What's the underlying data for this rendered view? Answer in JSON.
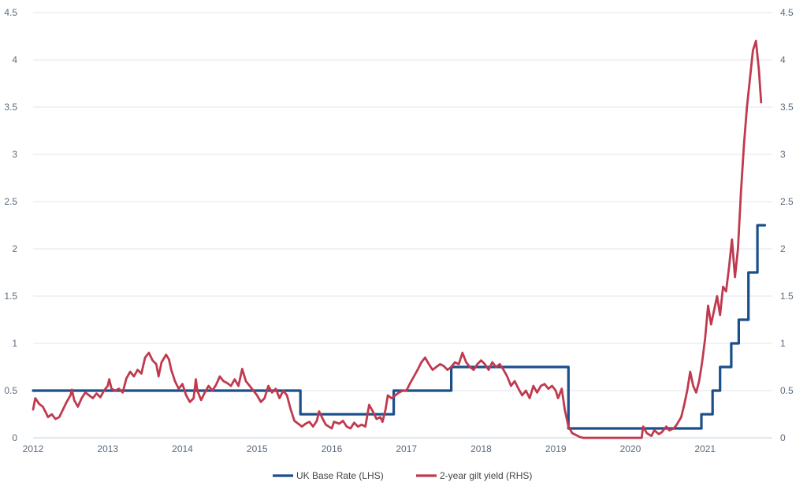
{
  "chart_data": {
    "type": "line",
    "title": "",
    "xlabel": "",
    "ylabel_left": "",
    "ylabel_right": "",
    "xlim": [
      2012,
      2021.9
    ],
    "ylim_left": [
      0,
      4.5
    ],
    "ylim_right": [
      0,
      4.5
    ],
    "y_ticks": [
      "0",
      "0.5",
      "1",
      "1.5",
      "2",
      "2.5",
      "3",
      "3.5",
      "4",
      "4.5"
    ],
    "y_tick_values": [
      0,
      0.5,
      1,
      1.5,
      2,
      2.5,
      3,
      3.5,
      4,
      4.5
    ],
    "x_ticks": [
      "2012",
      "2013",
      "2014",
      "2015",
      "2016",
      "2017",
      "2018",
      "2019",
      "2020",
      "2021"
    ],
    "x_tick_values": [
      2012,
      2013,
      2014,
      2015,
      2016,
      2017,
      2018,
      2019,
      2020,
      2021
    ],
    "grid": "horizontal",
    "legend_position": "bottom-center",
    "series": [
      {
        "name": "UK Base Rate (LHS)",
        "axis": "left",
        "color": "#1b4f8a",
        "step": true,
        "points": [
          [
            2012.0,
            0.5
          ],
          [
            2015.58,
            0.5
          ],
          [
            2015.58,
            0.25
          ],
          [
            2016.83,
            0.25
          ],
          [
            2016.83,
            0.5
          ],
          [
            2017.6,
            0.5
          ],
          [
            2017.6,
            0.75
          ],
          [
            2019.17,
            0.75
          ],
          [
            2019.17,
            0.1
          ],
          [
            2020.95,
            0.1
          ],
          [
            2020.95,
            0.25
          ],
          [
            2021.1,
            0.25
          ],
          [
            2021.1,
            0.5
          ],
          [
            2021.2,
            0.5
          ],
          [
            2021.2,
            0.75
          ],
          [
            2021.35,
            0.75
          ],
          [
            2021.35,
            1.0
          ],
          [
            2021.45,
            1.0
          ],
          [
            2021.45,
            1.25
          ],
          [
            2021.58,
            1.25
          ],
          [
            2021.58,
            1.75
          ],
          [
            2021.7,
            1.75
          ],
          [
            2021.7,
            2.25
          ],
          [
            2021.8,
            2.25
          ]
        ]
      },
      {
        "name": "2-year gilt yield (RHS)",
        "axis": "right",
        "color": "#c0394f",
        "step": false,
        "points": [
          [
            2012.0,
            0.3
          ],
          [
            2012.03,
            0.42
          ],
          [
            2012.08,
            0.36
          ],
          [
            2012.13,
            0.33
          ],
          [
            2012.17,
            0.27
          ],
          [
            2012.2,
            0.22
          ],
          [
            2012.25,
            0.25
          ],
          [
            2012.3,
            0.2
          ],
          [
            2012.35,
            0.22
          ],
          [
            2012.4,
            0.3
          ],
          [
            2012.45,
            0.38
          ],
          [
            2012.5,
            0.45
          ],
          [
            2012.52,
            0.51
          ],
          [
            2012.55,
            0.4
          ],
          [
            2012.6,
            0.33
          ],
          [
            2012.65,
            0.42
          ],
          [
            2012.7,
            0.48
          ],
          [
            2012.75,
            0.45
          ],
          [
            2012.8,
            0.42
          ],
          [
            2012.85,
            0.47
          ],
          [
            2012.9,
            0.43
          ],
          [
            2012.95,
            0.5
          ],
          [
            2013.0,
            0.55
          ],
          [
            2013.02,
            0.62
          ],
          [
            2013.05,
            0.52
          ],
          [
            2013.1,
            0.5
          ],
          [
            2013.15,
            0.52
          ],
          [
            2013.2,
            0.48
          ],
          [
            2013.25,
            0.63
          ],
          [
            2013.3,
            0.7
          ],
          [
            2013.35,
            0.65
          ],
          [
            2013.4,
            0.72
          ],
          [
            2013.45,
            0.68
          ],
          [
            2013.5,
            0.85
          ],
          [
            2013.55,
            0.9
          ],
          [
            2013.6,
            0.82
          ],
          [
            2013.65,
            0.78
          ],
          [
            2013.68,
            0.65
          ],
          [
            2013.72,
            0.8
          ],
          [
            2013.78,
            0.88
          ],
          [
            2013.82,
            0.83
          ],
          [
            2013.85,
            0.72
          ],
          [
            2013.9,
            0.6
          ],
          [
            2013.95,
            0.52
          ],
          [
            2014.0,
            0.57
          ],
          [
            2014.05,
            0.45
          ],
          [
            2014.1,
            0.38
          ],
          [
            2014.15,
            0.42
          ],
          [
            2014.18,
            0.62
          ],
          [
            2014.2,
            0.5
          ],
          [
            2014.25,
            0.4
          ],
          [
            2014.3,
            0.48
          ],
          [
            2014.35,
            0.55
          ],
          [
            2014.4,
            0.5
          ],
          [
            2014.45,
            0.56
          ],
          [
            2014.5,
            0.65
          ],
          [
            2014.55,
            0.6
          ],
          [
            2014.6,
            0.58
          ],
          [
            2014.65,
            0.55
          ],
          [
            2014.7,
            0.62
          ],
          [
            2014.75,
            0.55
          ],
          [
            2014.8,
            0.73
          ],
          [
            2014.85,
            0.6
          ],
          [
            2014.9,
            0.55
          ],
          [
            2014.95,
            0.5
          ],
          [
            2015.0,
            0.45
          ],
          [
            2015.05,
            0.38
          ],
          [
            2015.1,
            0.42
          ],
          [
            2015.15,
            0.55
          ],
          [
            2015.2,
            0.48
          ],
          [
            2015.25,
            0.52
          ],
          [
            2015.3,
            0.42
          ],
          [
            2015.35,
            0.5
          ],
          [
            2015.4,
            0.45
          ],
          [
            2015.45,
            0.3
          ],
          [
            2015.5,
            0.18
          ],
          [
            2015.55,
            0.15
          ],
          [
            2015.6,
            0.12
          ],
          [
            2015.65,
            0.15
          ],
          [
            2015.7,
            0.17
          ],
          [
            2015.75,
            0.12
          ],
          [
            2015.8,
            0.18
          ],
          [
            2015.83,
            0.28
          ],
          [
            2015.88,
            0.2
          ],
          [
            2015.92,
            0.14
          ],
          [
            2016.0,
            0.1
          ],
          [
            2016.03,
            0.17
          ],
          [
            2016.1,
            0.15
          ],
          [
            2016.15,
            0.18
          ],
          [
            2016.2,
            0.12
          ],
          [
            2016.25,
            0.1
          ],
          [
            2016.3,
            0.16
          ],
          [
            2016.35,
            0.12
          ],
          [
            2016.4,
            0.14
          ],
          [
            2016.45,
            0.12
          ],
          [
            2016.5,
            0.35
          ],
          [
            2016.55,
            0.28
          ],
          [
            2016.6,
            0.2
          ],
          [
            2016.65,
            0.22
          ],
          [
            2016.68,
            0.17
          ],
          [
            2016.72,
            0.3
          ],
          [
            2016.75,
            0.45
          ],
          [
            2016.8,
            0.42
          ],
          [
            2016.85,
            0.45
          ],
          [
            2016.9,
            0.48
          ],
          [
            2016.95,
            0.5
          ],
          [
            2017.0,
            0.5
          ],
          [
            2017.05,
            0.58
          ],
          [
            2017.1,
            0.65
          ],
          [
            2017.15,
            0.72
          ],
          [
            2017.2,
            0.8
          ],
          [
            2017.25,
            0.85
          ],
          [
            2017.3,
            0.78
          ],
          [
            2017.35,
            0.72
          ],
          [
            2017.4,
            0.75
          ],
          [
            2017.45,
            0.78
          ],
          [
            2017.5,
            0.76
          ],
          [
            2017.55,
            0.72
          ],
          [
            2017.6,
            0.75
          ],
          [
            2017.65,
            0.8
          ],
          [
            2017.7,
            0.78
          ],
          [
            2017.75,
            0.9
          ],
          [
            2017.8,
            0.8
          ],
          [
            2017.85,
            0.75
          ],
          [
            2017.9,
            0.72
          ],
          [
            2017.95,
            0.78
          ],
          [
            2018.0,
            0.82
          ],
          [
            2018.05,
            0.78
          ],
          [
            2018.1,
            0.72
          ],
          [
            2018.15,
            0.8
          ],
          [
            2018.2,
            0.75
          ],
          [
            2018.25,
            0.78
          ],
          [
            2018.3,
            0.72
          ],
          [
            2018.35,
            0.65
          ],
          [
            2018.4,
            0.55
          ],
          [
            2018.45,
            0.6
          ],
          [
            2018.5,
            0.52
          ],
          [
            2018.55,
            0.45
          ],
          [
            2018.6,
            0.5
          ],
          [
            2018.65,
            0.42
          ],
          [
            2018.7,
            0.55
          ],
          [
            2018.75,
            0.48
          ],
          [
            2018.8,
            0.55
          ],
          [
            2018.85,
            0.57
          ],
          [
            2018.9,
            0.52
          ],
          [
            2018.95,
            0.55
          ],
          [
            2019.0,
            0.5
          ],
          [
            2019.03,
            0.42
          ],
          [
            2019.08,
            0.52
          ],
          [
            2019.12,
            0.3
          ],
          [
            2019.17,
            0.12
          ],
          [
            2019.22,
            0.05
          ],
          [
            2019.27,
            0.03
          ],
          [
            2019.32,
            0.01
          ],
          [
            2019.37,
            0.0
          ],
          [
            2020.15,
            0.0
          ],
          [
            2020.17,
            0.12
          ],
          [
            2020.22,
            0.05
          ],
          [
            2020.28,
            0.02
          ],
          [
            2020.32,
            0.08
          ],
          [
            2020.38,
            0.04
          ],
          [
            2020.42,
            0.06
          ],
          [
            2020.48,
            0.12
          ],
          [
            2020.52,
            0.08
          ],
          [
            2020.58,
            0.1
          ],
          [
            2020.62,
            0.14
          ],
          [
            2020.68,
            0.22
          ],
          [
            2020.72,
            0.35
          ],
          [
            2020.76,
            0.5
          ],
          [
            2020.8,
            0.7
          ],
          [
            2020.84,
            0.55
          ],
          [
            2020.88,
            0.48
          ],
          [
            2020.92,
            0.6
          ],
          [
            2020.96,
            0.8
          ],
          [
            2021.0,
            1.05
          ],
          [
            2021.04,
            1.4
          ],
          [
            2021.08,
            1.2
          ],
          [
            2021.12,
            1.35
          ],
          [
            2021.16,
            1.5
          ],
          [
            2021.2,
            1.3
          ],
          [
            2021.24,
            1.6
          ],
          [
            2021.28,
            1.55
          ],
          [
            2021.32,
            1.8
          ],
          [
            2021.36,
            2.1
          ],
          [
            2021.4,
            1.7
          ],
          [
            2021.44,
            2.0
          ],
          [
            2021.48,
            2.6
          ],
          [
            2021.52,
            3.1
          ],
          [
            2021.56,
            3.5
          ],
          [
            2021.6,
            3.8
          ],
          [
            2021.64,
            4.1
          ],
          [
            2021.68,
            4.2
          ],
          [
            2021.72,
            3.9
          ],
          [
            2021.75,
            3.55
          ]
        ]
      }
    ]
  }
}
